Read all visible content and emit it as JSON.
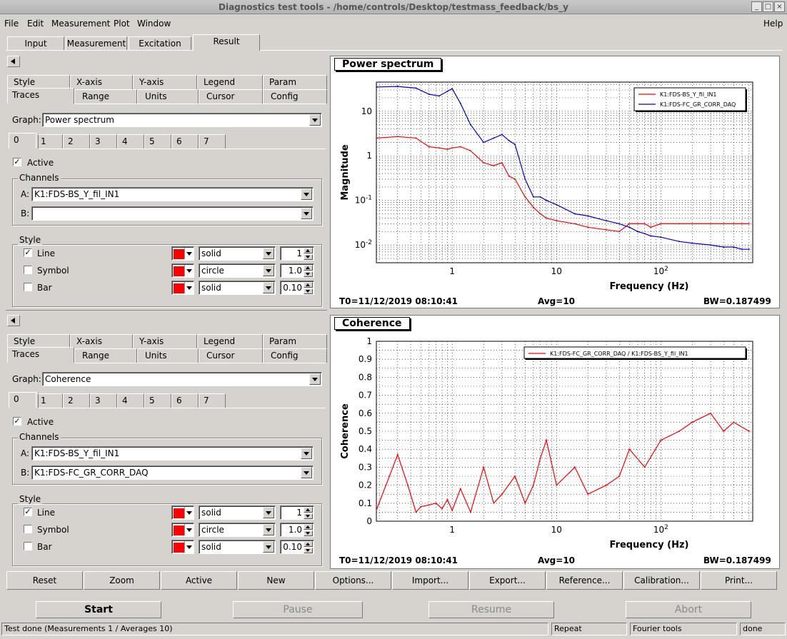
{
  "window": {
    "title": "Diagnostics test tools - /home/controls/Desktop/testmass_feedback/bs_y",
    "controls": [
      "minimize-icon",
      "maximize-icon",
      "close-icon"
    ]
  },
  "menubar": {
    "items": [
      "File",
      "Edit",
      "Measurement",
      "Plot",
      "Window"
    ],
    "help": "Help"
  },
  "main_tabs": [
    "Input",
    "Measurement",
    "Excitation",
    "Result"
  ],
  "main_tab_active": "Result",
  "panels": [
    {
      "tabs_row1": [
        "Style",
        "X-axis",
        "Y-axis",
        "Legend",
        "Param"
      ],
      "tabs_row2": [
        "Traces",
        "Range",
        "Units",
        "Cursor",
        "Config"
      ],
      "graph_label": "Graph:",
      "graph_value": "Power spectrum",
      "trace_tabs": [
        "0",
        "1",
        "2",
        "3",
        "4",
        "5",
        "6",
        "7"
      ],
      "active_label": "Active",
      "active_checked": "✓",
      "channels_label": "Channels",
      "channel_a_label": "A:",
      "channel_a": "K1:FDS-BS_Y_fil_IN1",
      "channel_b_label": "B:",
      "channel_b": "",
      "style_label": "Style",
      "style_rows": [
        {
          "label": "Line",
          "checked": "✓",
          "color": "#ff0000",
          "type": "solid",
          "value": "1"
        },
        {
          "label": "Symbol",
          "checked": "",
          "color": "#ff0000",
          "type": "circle",
          "value": "1.0"
        },
        {
          "label": "Bar",
          "checked": "",
          "color": "#ff0000",
          "type": "solid",
          "value": "0.10"
        }
      ]
    },
    {
      "tabs_row1": [
        "Style",
        "X-axis",
        "Y-axis",
        "Legend",
        "Param"
      ],
      "tabs_row2": [
        "Traces",
        "Range",
        "Units",
        "Cursor",
        "Config"
      ],
      "graph_label": "Graph:",
      "graph_value": "Coherence",
      "trace_tabs": [
        "0",
        "1",
        "2",
        "3",
        "4",
        "5",
        "6",
        "7"
      ],
      "active_label": "Active",
      "active_checked": "✓",
      "channels_label": "Channels",
      "channel_a_label": "A:",
      "channel_a": "K1:FDS-BS_Y_fil_IN1",
      "channel_b_label": "B:",
      "channel_b": "K1:FDS-FC_GR_CORR_DAQ",
      "style_label": "Style",
      "style_rows": [
        {
          "label": "Line",
          "checked": "✓",
          "color": "#ff0000",
          "type": "solid",
          "value": "1"
        },
        {
          "label": "Symbol",
          "checked": "",
          "color": "#ff0000",
          "type": "circle",
          "value": "1.0"
        },
        {
          "label": "Bar",
          "checked": "",
          "color": "#ff0000",
          "type": "solid",
          "value": "0.10"
        }
      ]
    }
  ],
  "plots": [
    {
      "title": "Power spectrum",
      "footer_left": "T0=11/12/2019 08:10:41",
      "footer_mid": "Avg=10",
      "footer_right": "BW=0.187499"
    },
    {
      "title": "Coherence",
      "footer_left": "T0=11/12/2019 08:10:41",
      "footer_mid": "Avg=10",
      "footer_right": "BW=0.187499"
    }
  ],
  "chart_data": [
    {
      "type": "line",
      "title": "Power spectrum",
      "xlabel": "Frequency (Hz)",
      "ylabel": "Magnitude",
      "xscale": "log",
      "yscale": "log",
      "xlim": [
        0.1875,
        760
      ],
      "ylim": [
        0.004,
        45
      ],
      "x_tick_labels": [
        "1",
        "10",
        "10^2"
      ],
      "y_tick_labels": [
        "10^-2",
        "10^-1",
        "1",
        "10"
      ],
      "grid": true,
      "legend": "top-right",
      "series": [
        {
          "name": "K1:FDS-BS_Y_fil_IN1",
          "color": "#ff0000",
          "x": [
            0.19,
            0.3,
            0.45,
            0.6,
            0.75,
            0.9,
            1.0,
            1.2,
            1.5,
            2.0,
            2.5,
            3.0,
            3.5,
            4.0,
            5.0,
            6.0,
            7.0,
            8.0,
            10,
            15,
            20,
            30,
            40,
            50,
            60,
            70,
            80,
            100,
            150,
            200,
            300,
            400,
            500,
            600,
            700
          ],
          "y": [
            2.5,
            2.7,
            2.5,
            1.6,
            1.5,
            1.4,
            1.5,
            1.6,
            1.3,
            0.7,
            0.6,
            0.7,
            0.35,
            0.3,
            0.12,
            0.07,
            0.05,
            0.04,
            0.035,
            0.03,
            0.025,
            0.022,
            0.02,
            0.03,
            0.03,
            0.03,
            0.025,
            0.03,
            0.03,
            0.03,
            0.03,
            0.03,
            0.03,
            0.03,
            0.03
          ]
        },
        {
          "name": "K1:FDS-FC_GR_CORR_DAQ",
          "color": "#0000cc",
          "x": [
            0.19,
            0.3,
            0.45,
            0.6,
            0.75,
            0.9,
            1.0,
            1.2,
            1.5,
            2.0,
            2.5,
            3.0,
            3.5,
            4.0,
            5.0,
            6.0,
            7.0,
            8.0,
            10,
            15,
            20,
            30,
            40,
            50,
            60,
            70,
            80,
            100,
            150,
            200,
            300,
            400,
            500,
            600,
            700
          ],
          "y": [
            35,
            36,
            33,
            24,
            22,
            28,
            32,
            15,
            5,
            2.0,
            2.5,
            3.0,
            2.2,
            1.8,
            0.3,
            0.12,
            0.12,
            0.1,
            0.08,
            0.05,
            0.045,
            0.035,
            0.03,
            0.025,
            0.02,
            0.018,
            0.016,
            0.015,
            0.012,
            0.011,
            0.01,
            0.009,
            0.009,
            0.008,
            0.008
          ]
        }
      ]
    },
    {
      "type": "line",
      "title": "Coherence",
      "xlabel": "Frequency (Hz)",
      "ylabel": "Coherence",
      "xscale": "log",
      "yscale": "linear",
      "xlim": [
        0.1875,
        760
      ],
      "ylim": [
        0,
        1
      ],
      "x_tick_labels": [
        "1",
        "10",
        "10^2"
      ],
      "y_tick_labels": [
        "0",
        "0.1",
        "0.2",
        "0.3",
        "0.4",
        "0.5",
        "0.6",
        "0.7",
        "0.8",
        "0.9",
        "1"
      ],
      "grid": true,
      "legend": "top-right",
      "series": [
        {
          "name": "K1:FDS-FC_GR_CORR_DAQ / K1:FDS-BS_Y_fil_IN1",
          "color": "#ff0000",
          "x": [
            0.19,
            0.25,
            0.3,
            0.375,
            0.45,
            0.5,
            0.6,
            0.7,
            0.8,
            0.9,
            1.0,
            1.2,
            1.5,
            2.0,
            2.5,
            3.0,
            4.0,
            5.0,
            6.0,
            7.0,
            8.0,
            10,
            15,
            20,
            30,
            40,
            50,
            70,
            100,
            150,
            200,
            300,
            400,
            500,
            700
          ],
          "y": [
            0.07,
            0.25,
            0.37,
            0.2,
            0.05,
            0.08,
            0.09,
            0.1,
            0.07,
            0.12,
            0.06,
            0.18,
            0.05,
            0.3,
            0.1,
            0.15,
            0.25,
            0.1,
            0.2,
            0.35,
            0.45,
            0.2,
            0.3,
            0.15,
            0.2,
            0.25,
            0.4,
            0.3,
            0.45,
            0.5,
            0.55,
            0.6,
            0.5,
            0.55,
            0.5
          ]
        }
      ]
    }
  ],
  "bottom_buttons": [
    "Reset",
    "Zoom",
    "Active",
    "New",
    "Options...",
    "Import...",
    "Export...",
    "Reference...",
    "Calibration...",
    "Print..."
  ],
  "run_buttons": [
    "Start",
    "Pause",
    "Resume",
    "Abort"
  ],
  "status": {
    "main": "Test done (Measurements 1 / Averages 10)",
    "mode": "Repeat",
    "tool": "Fourier tools",
    "state": "done"
  }
}
